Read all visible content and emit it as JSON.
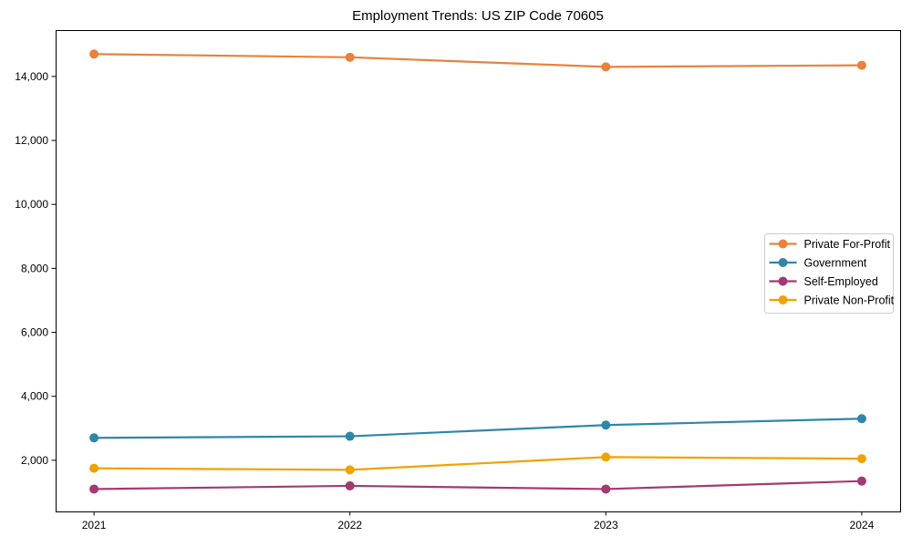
{
  "figure": {
    "background": "#ffffff",
    "axis_color": "#000000",
    "legend_border_color": "#cccccc",
    "legend_background": "#ffffff"
  },
  "chart_data": {
    "type": "line",
    "title": "Employment Trends: US ZIP Code 70605",
    "xlabel": "",
    "ylabel": "",
    "categories": [
      2021,
      2022,
      2023,
      2024
    ],
    "series": [
      {
        "name": "Private For-Profit",
        "color": "#E8823D",
        "marker": "circle",
        "values": [
          14700,
          14600,
          14300,
          14350
        ]
      },
      {
        "name": "Government",
        "color": "#2E86AB",
        "marker": "circle",
        "values": [
          2700,
          2750,
          3100,
          3300
        ]
      },
      {
        "name": "Self-Employed",
        "color": "#A23B72",
        "marker": "circle",
        "values": [
          1100,
          1200,
          1100,
          1350
        ]
      },
      {
        "name": "Private Non-Profit",
        "color": "#F0A202",
        "marker": "circle",
        "values": [
          1750,
          1700,
          2100,
          2050
        ]
      }
    ],
    "yticks": [
      2000,
      4000,
      6000,
      8000,
      10000,
      12000,
      14000
    ],
    "ytick_labels": [
      "2,000",
      "4,000",
      "6,000",
      "8,000",
      "10,000",
      "12,000",
      "14,000"
    ],
    "xtick_labels": [
      "2021",
      "2022",
      "2023",
      "2024"
    ],
    "ylim": [
      400,
      15450
    ],
    "xlim": [
      2020.85,
      2024.15
    ],
    "grid": false,
    "legend_position": "center-right",
    "legend_entries": [
      "Private For-Profit",
      "Government",
      "Self-Employed",
      "Private Non-Profit"
    ]
  }
}
